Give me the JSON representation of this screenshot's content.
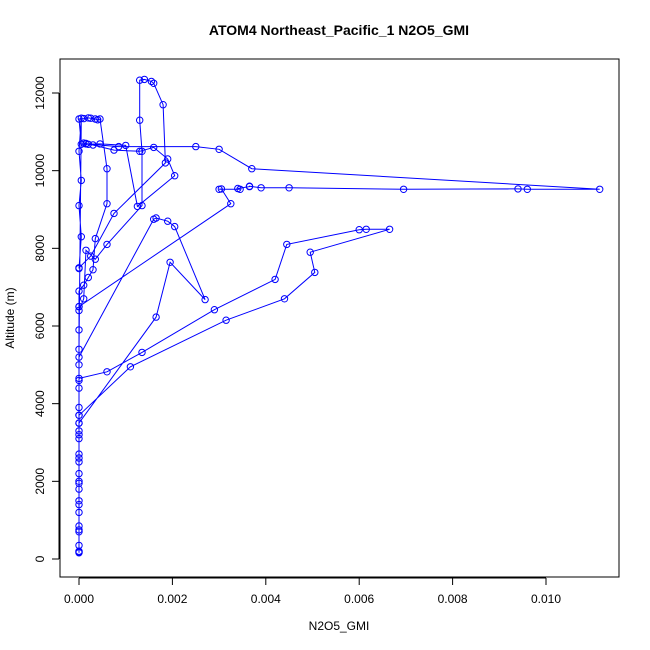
{
  "chart_data": {
    "type": "line",
    "title": "ATOM4 Northeast_Pacific_1 N2O5_GMI",
    "xlabel": "N2O5_GMI",
    "ylabel": "Altitude (m)",
    "xlim": [
      0,
      0.0115
    ],
    "ylim": [
      0,
      12700
    ],
    "x_ticks": [
      0.0,
      0.002,
      0.004,
      0.006,
      0.008,
      0.01
    ],
    "x_tick_labels": [
      "0.000",
      "0.002",
      "0.004",
      "0.006",
      "0.008",
      "0.010"
    ],
    "y_ticks": [
      0,
      2000,
      4000,
      6000,
      8000,
      10000,
      12000
    ],
    "y_tick_labels": [
      "0",
      "2000",
      "4000",
      "6000",
      "8000",
      "10000",
      "12000"
    ],
    "grid": false,
    "series_color": "#0000ff",
    "marker": "open-circle",
    "points": [
      [
        0.0,
        180
      ],
      [
        0.0,
        350
      ],
      [
        0.0,
        700
      ],
      [
        0.0,
        850
      ],
      [
        0.0,
        1200
      ],
      [
        0.0,
        1500
      ],
      [
        0.0,
        1800
      ],
      [
        0.0,
        2000
      ],
      [
        0.0,
        2200
      ],
      [
        0.0,
        2500
      ],
      [
        0.0,
        2700
      ],
      [
        0.0,
        3100
      ],
      [
        0.0,
        3300
      ],
      [
        0.0,
        3500
      ],
      [
        0.0,
        3700
      ],
      [
        0.0,
        3900
      ],
      [
        0.0,
        4400
      ],
      [
        0.0,
        4650
      ],
      [
        0.0006,
        4820
      ],
      [
        0.00135,
        5320
      ],
      [
        0.0029,
        6420
      ],
      [
        0.0042,
        7200
      ],
      [
        0.00445,
        8100
      ],
      [
        0.006,
        8480
      ],
      [
        0.00615,
        8490
      ],
      [
        0.00665,
        8490
      ],
      [
        0.00495,
        7900
      ],
      [
        0.00505,
        7380
      ],
      [
        0.0044,
        6700
      ],
      [
        0.00315,
        6150
      ],
      [
        0.0011,
        4950
      ],
      [
        0.0,
        3700
      ],
      [
        0.0,
        3500
      ],
      [
        0.00165,
        6230
      ],
      [
        0.00195,
        7640
      ],
      [
        0.0027,
        6680
      ],
      [
        0.00205,
        8560
      ],
      [
        0.0019,
        8700
      ],
      [
        0.00165,
        8780
      ],
      [
        0.0016,
        8750
      ],
      [
        0.0,
        5200
      ],
      [
        0.0,
        5900
      ],
      [
        0.0,
        6500
      ],
      [
        0.00325,
        9150
      ],
      [
        0.00305,
        9530
      ],
      [
        0.003,
        9520
      ],
      [
        0.00345,
        9520
      ],
      [
        0.0034,
        9540
      ],
      [
        0.00365,
        9590
      ],
      [
        0.00365,
        9600
      ],
      [
        0.0039,
        9560
      ],
      [
        0.0045,
        9560
      ],
      [
        0.00695,
        9520
      ],
      [
        0.0094,
        9530
      ],
      [
        0.0096,
        9520
      ],
      [
        0.01115,
        9520
      ],
      [
        0.0037,
        10050
      ],
      [
        0.003,
        10550
      ],
      [
        0.0025,
        10620
      ],
      [
        0.00085,
        10620
      ],
      [
        0.00015,
        10690
      ],
      [
        0.00015,
        10700
      ],
      [
        0.0001,
        10710
      ],
      [
        0.0003,
        10660
      ],
      [
        0.00075,
        10530
      ],
      [
        0.0013,
        10500
      ],
      [
        0.0016,
        10600
      ],
      [
        0.0019,
        10300
      ],
      [
        0.00205,
        9870
      ],
      [
        0.00125,
        9080
      ],
      [
        0.001,
        10650
      ],
      [
        0.00045,
        10690
      ],
      [
        0.0002,
        10680
      ],
      [
        5e-05,
        10680
      ],
      [
        0.0,
        11330
      ],
      [
        0.0001,
        11340
      ],
      [
        0.0002,
        11360
      ],
      [
        0.00025,
        11350
      ],
      [
        0.00035,
        11330
      ],
      [
        0.0004,
        11310
      ],
      [
        0.00045,
        11330
      ],
      [
        0.0006,
        10050
      ],
      [
        0.0006,
        9150
      ],
      [
        0.00035,
        8250
      ],
      [
        0.0003,
        7450
      ],
      [
        0.0002,
        7250
      ],
      [
        0.0001,
        7050
      ],
      [
        0.0,
        6900
      ],
      [
        0.0,
        6500
      ],
      [
        0.0,
        6400
      ],
      [
        0.0001,
        6700
      ],
      [
        0.00015,
        7950
      ],
      [
        0.00035,
        7720
      ],
      [
        0.0006,
        8100
      ],
      [
        0.00135,
        9100
      ],
      [
        0.00135,
        10500
      ],
      [
        0.0013,
        11300
      ],
      [
        0.0013,
        12330
      ],
      [
        0.0014,
        12350
      ],
      [
        0.00155,
        12300
      ],
      [
        0.0016,
        12250
      ],
      [
        0.0018,
        11700
      ],
      [
        0.00185,
        10200
      ],
      [
        0.00075,
        8900
      ],
      [
        0.00025,
        7800
      ],
      [
        0.0,
        7500
      ],
      [
        0.0,
        7480
      ],
      [
        5e-05,
        8300
      ],
      [
        0.0,
        9100
      ],
      [
        5e-05,
        9750
      ],
      [
        0.0,
        10500
      ],
      [
        5e-05,
        11350
      ],
      [
        0.0,
        5400
      ],
      [
        0.0,
        5000
      ],
      [
        0.0,
        4600
      ],
      [
        0.0,
        3200
      ],
      [
        0.0,
        2600
      ],
      [
        0.0,
        1950
      ],
      [
        0.0,
        1400
      ],
      [
        0.0,
        750
      ],
      [
        0.0,
        200
      ],
      [
        0.0,
        160
      ]
    ]
  }
}
